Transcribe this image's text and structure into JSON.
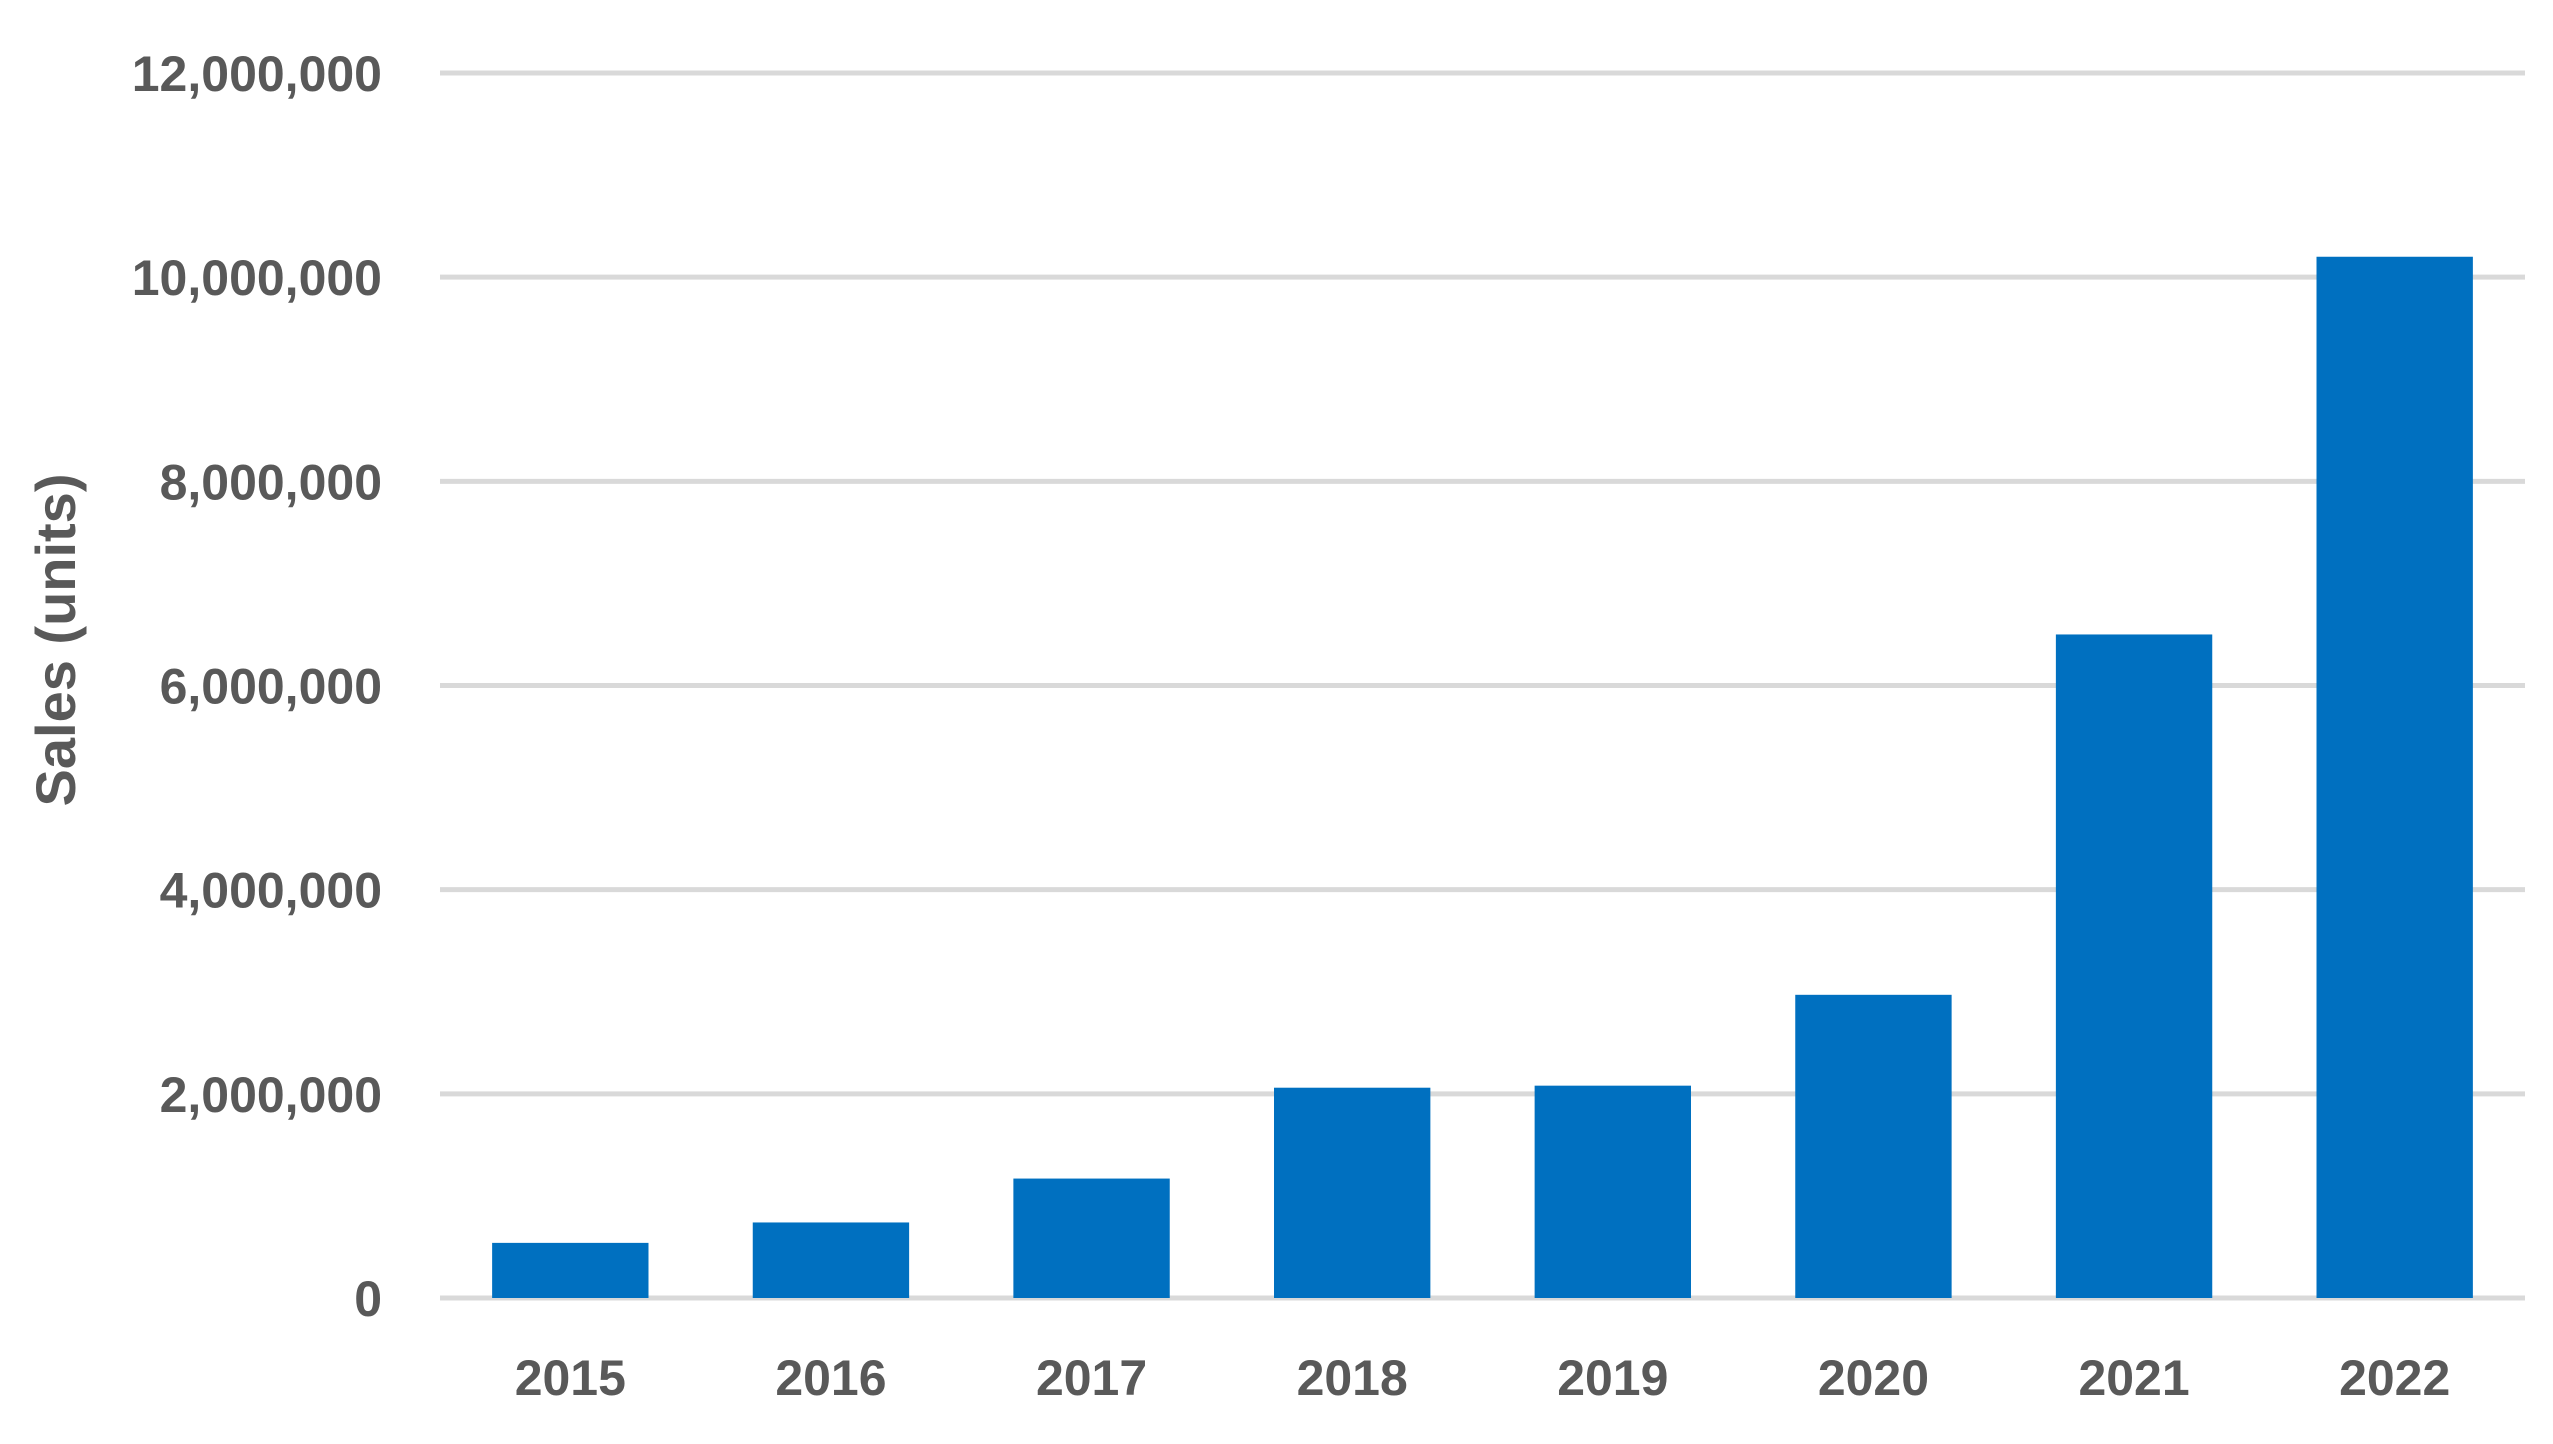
{
  "chart_data": {
    "type": "bar",
    "title": "",
    "xlabel": "",
    "ylabel": "Sales (units)",
    "categories": [
      "2015",
      "2016",
      "2017",
      "2018",
      "2019",
      "2020",
      "2021",
      "2022"
    ],
    "values": [
      540000,
      740000,
      1170000,
      2060000,
      2080000,
      2970000,
      6500000,
      10200000
    ],
    "ylim": [
      0,
      12000000
    ],
    "yticks": [
      0,
      2000000,
      4000000,
      6000000,
      8000000,
      10000000,
      12000000
    ],
    "ytick_labels": [
      "0",
      "2,000,000",
      "4,000,000",
      "6,000,000",
      "8,000,000",
      "10,000,000",
      "12,000,000"
    ],
    "grid": true,
    "legend": "none",
    "colors": {
      "bar": "#0070c0",
      "grid": "#d9d9d9",
      "text": "#595959"
    }
  }
}
